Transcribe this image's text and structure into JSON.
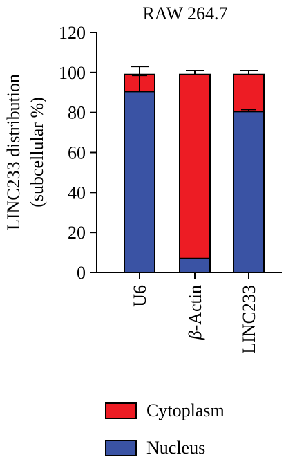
{
  "chart_data": {
    "type": "bar",
    "stacked": true,
    "title": "RAW 264.7",
    "ylabel_line1": "LINC233 distribution",
    "ylabel_line2": "(subcellular %)",
    "ylim": [
      0,
      120
    ],
    "yticks": [
      0,
      20,
      40,
      60,
      80,
      100,
      120
    ],
    "categories": [
      "U6",
      "β-Actin",
      "LINC233"
    ],
    "series": [
      {
        "name": "Nucleus",
        "color": "#3A53A4",
        "values": [
          90.5,
          7,
          80.5
        ],
        "error": [
          8,
          0,
          1
        ]
      },
      {
        "name": "Cytoplasm",
        "color": "#ED1C24",
        "values": [
          8.5,
          92,
          18.5
        ],
        "error": [
          4,
          2,
          2
        ]
      }
    ],
    "legend_position": "bottom"
  },
  "legend": {
    "cytoplasm_label": "Cytoplasm",
    "nucleus_label": "Nucleus"
  }
}
